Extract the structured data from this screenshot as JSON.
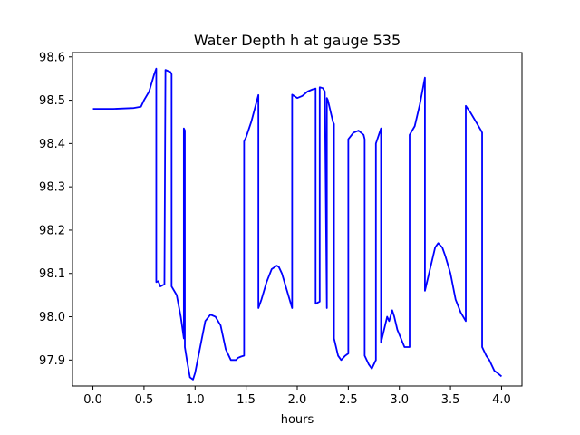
{
  "chart_data": {
    "type": "line",
    "title": "Water Depth h at gauge 535",
    "xlabel": "hours",
    "ylabel": "",
    "xlim": [
      -0.2,
      4.2
    ],
    "ylim": [
      97.84,
      98.61
    ],
    "xticks": [
      0.0,
      0.5,
      1.0,
      1.5,
      2.0,
      2.5,
      3.0,
      3.5,
      4.0
    ],
    "xtick_labels": [
      "0.0",
      "0.5",
      "1.0",
      "1.5",
      "2.0",
      "2.5",
      "3.0",
      "3.5",
      "4.0"
    ],
    "yticks": [
      97.9,
      98.0,
      98.1,
      98.2,
      98.3,
      98.4,
      98.5,
      98.6
    ],
    "ytick_labels": [
      "97.9",
      "98.0",
      "98.1",
      "98.2",
      "98.3",
      "98.4",
      "98.5",
      "98.6"
    ],
    "grid": false,
    "series": [
      {
        "color": "#0000ff",
        "x": [
          0.0,
          0.2,
          0.4,
          0.47,
          0.5,
          0.55,
          0.6,
          0.62,
          0.62,
          0.64,
          0.66,
          0.7,
          0.71,
          0.71,
          0.76,
          0.77,
          0.77,
          0.82,
          0.86,
          0.89,
          0.89,
          0.9,
          0.9,
          0.92,
          0.95,
          0.98,
          1.0,
          1.05,
          1.1,
          1.15,
          1.2,
          1.25,
          1.3,
          1.35,
          1.4,
          1.42,
          1.45,
          1.48,
          1.48,
          1.5,
          1.55,
          1.62,
          1.62,
          1.65,
          1.7,
          1.75,
          1.8,
          1.82,
          1.85,
          1.9,
          1.95,
          1.95,
          2.0,
          2.05,
          2.1,
          2.15,
          2.18,
          2.18,
          2.22,
          2.22,
          2.25,
          2.27,
          2.29,
          2.29,
          2.3,
          2.3,
          2.35,
          2.36,
          2.36,
          2.4,
          2.43,
          2.47,
          2.5,
          2.5,
          2.55,
          2.6,
          2.65,
          2.66,
          2.66,
          2.7,
          2.73,
          2.77,
          2.77,
          2.82,
          2.82,
          2.86,
          2.88,
          2.9,
          2.93,
          2.95,
          2.98,
          3.05,
          3.1,
          3.1,
          3.15,
          3.2,
          3.25,
          3.25,
          3.3,
          3.35,
          3.38,
          3.42,
          3.45,
          3.5,
          3.55,
          3.6,
          3.65,
          3.65,
          3.7,
          3.75,
          3.8,
          3.81,
          3.81,
          3.85,
          3.88,
          3.9,
          3.93,
          3.96,
          4.0
        ],
        "y": [
          98.48,
          98.48,
          98.482,
          98.485,
          98.5,
          98.52,
          98.56,
          98.573,
          98.08,
          98.082,
          98.07,
          98.075,
          98.57,
          98.57,
          98.565,
          98.56,
          98.07,
          98.05,
          98.0,
          97.95,
          98.435,
          98.43,
          97.93,
          97.9,
          97.86,
          97.855,
          97.87,
          97.93,
          97.99,
          98.005,
          98.0,
          97.98,
          97.925,
          97.9,
          97.9,
          97.905,
          97.908,
          97.91,
          98.405,
          98.415,
          98.45,
          98.512,
          98.02,
          98.04,
          98.08,
          98.11,
          98.118,
          98.115,
          98.1,
          98.06,
          98.02,
          98.513,
          98.505,
          98.51,
          98.52,
          98.525,
          98.527,
          98.03,
          98.035,
          98.53,
          98.528,
          98.52,
          98.02,
          98.505,
          98.5,
          98.5,
          98.45,
          98.445,
          97.95,
          97.91,
          97.9,
          97.91,
          97.915,
          98.41,
          98.425,
          98.43,
          98.42,
          98.41,
          97.91,
          97.89,
          97.88,
          97.9,
          98.4,
          98.435,
          97.94,
          97.98,
          98.0,
          97.99,
          98.015,
          98.0,
          97.97,
          97.93,
          97.93,
          98.42,
          98.44,
          98.49,
          98.552,
          98.06,
          98.11,
          98.16,
          98.17,
          98.16,
          98.14,
          98.1,
          98.04,
          98.01,
          97.99,
          98.487,
          98.47,
          98.45,
          98.43,
          98.425,
          97.93,
          97.91,
          97.9,
          97.89,
          97.875,
          97.87,
          97.862
        ]
      }
    ]
  }
}
